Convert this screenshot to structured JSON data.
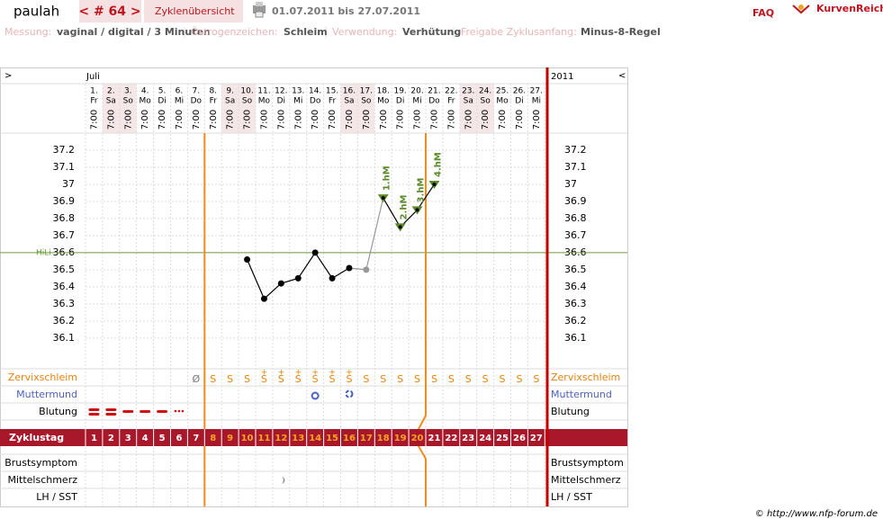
{
  "header": {
    "user": "paulah",
    "cycle": "< # 64 >",
    "overview": "Zyklenübersicht",
    "period": "01.07.2011 bis 27.07.2011",
    "faq": "FAQ",
    "logo": "KurvenReich",
    "copyright": "© http://www.nfp-forum.de"
  },
  "settings": [
    {
      "label": "Messung:",
      "value": "vaginal / digital / 3 Minuten"
    },
    {
      "label": "Östrogenzeichen:",
      "value": "Schleim"
    },
    {
      "label": "Verwendung:",
      "value": "Verhütung"
    },
    {
      "label": "Freigabe Zyklusanfang:",
      "value": "Minus-8-Regel"
    }
  ],
  "chart_data": {
    "type": "line",
    "month": "Juli",
    "year": "2011",
    "nav_prev": ">",
    "nav_next": "<",
    "categories": [
      "1.",
      "2.",
      "3.",
      "4.",
      "5.",
      "6.",
      "7.",
      "8.",
      "9.",
      "10.",
      "11.",
      "12.",
      "13.",
      "14.",
      "15.",
      "16.",
      "17.",
      "18.",
      "19.",
      "20.",
      "21.",
      "22.",
      "23.",
      "24.",
      "25.",
      "26.",
      "27."
    ],
    "weekdays": [
      "Fr",
      "Sa",
      "So",
      "Mo",
      "Di",
      "Mi",
      "Do",
      "Fr",
      "Sa",
      "So",
      "Mo",
      "Di",
      "Mi",
      "Do",
      "Fr",
      "Sa",
      "So",
      "Mo",
      "Di",
      "Mi",
      "Do",
      "Fr",
      "Sa",
      "So",
      "Mo",
      "Di",
      "Mi"
    ],
    "times": [
      "7:00",
      "7:00",
      "7:00",
      "7:00",
      "7:00",
      "7:00",
      "7:00",
      "7:00",
      "7:00",
      "7:00",
      "7:00",
      "7:00",
      "7:00",
      "7:00",
      "7:00",
      "7:00",
      "7:00",
      "7:00",
      "7:00",
      "7:00",
      "7:00",
      "7:00",
      "7:00",
      "7:00",
      "7:00",
      "7:00",
      "7:00"
    ],
    "values": [
      null,
      null,
      null,
      null,
      null,
      null,
      null,
      null,
      null,
      36.56,
      36.33,
      36.42,
      36.45,
      36.6,
      36.45,
      36.51,
      36.5,
      36.92,
      36.75,
      36.85,
      37.0,
      null,
      null,
      null,
      null,
      null,
      null
    ],
    "excluded_days": [
      17
    ],
    "marker_labels": [
      null,
      null,
      null,
      null,
      null,
      null,
      null,
      null,
      null,
      null,
      null,
      null,
      null,
      null,
      null,
      null,
      null,
      "1.hM",
      "2.hM",
      "3.hM",
      "4.hM",
      null,
      null,
      null,
      null,
      null,
      null
    ],
    "color": "#000000",
    "marker_color": "#5a8a2a",
    "ylim": [
      35.92,
      37.3
    ],
    "yticks": [
      37.2,
      37.1,
      37,
      36.9,
      36.8,
      36.7,
      36.6,
      36.5,
      36.4,
      36.3,
      36.2,
      36.1
    ],
    "grid": true,
    "hili": {
      "label": "HiLi",
      "value": 36.6,
      "color": "#6a9a3a"
    },
    "fertile_window": [
      8,
      20
    ],
    "rows": {
      "zervix": {
        "label": "Zervixschleim",
        "color": "#e8820c"
      },
      "muttermund": {
        "label": "Muttermund",
        "color": "#4a62c0"
      },
      "blutung": {
        "label": "Blutung",
        "color": "#000000"
      },
      "brust": {
        "label": "Brustsymptom",
        "color": "#000000"
      },
      "mittelschmerz": {
        "label": "Mittelschmerz",
        "color": "#000000"
      },
      "lh": {
        "label": "LH / SST",
        "color": "#000000"
      }
    },
    "zervix": [
      null,
      null,
      null,
      null,
      null,
      null,
      "Ø",
      "S",
      "S",
      "S",
      "S",
      "S",
      "S",
      "S",
      "S",
      "S",
      "S",
      "S",
      "S",
      "S",
      "S",
      "S",
      "S",
      "S",
      "S",
      "S",
      "S"
    ],
    "zervix_plus": [
      null,
      null,
      null,
      null,
      null,
      null,
      null,
      null,
      null,
      null,
      "+",
      "+",
      "+",
      "+",
      "+",
      "+",
      null,
      null,
      null,
      null,
      null,
      null,
      null,
      null,
      null,
      null,
      null
    ],
    "cycle_label": "Zyklustag",
    "cycle_days": [
      1,
      2,
      3,
      4,
      5,
      6,
      7,
      8,
      9,
      10,
      11,
      12,
      13,
      14,
      15,
      16,
      17,
      18,
      19,
      20,
      21,
      22,
      23,
      24,
      25,
      26,
      27
    ]
  }
}
